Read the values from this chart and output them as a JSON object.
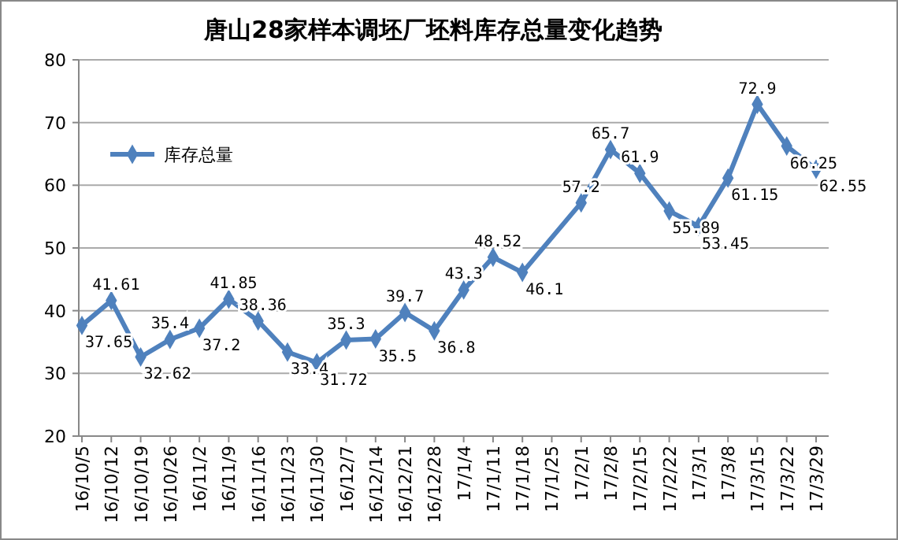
{
  "chart_data": {
    "type": "line",
    "title": "唐山28家样本调坯厂坯料库存总量变化趋势",
    "categories": [
      "16/10/5",
      "16/10/12",
      "16/10/19",
      "16/10/26",
      "16/11/2",
      "16/11/9",
      "16/11/16",
      "16/11/23",
      "16/11/30",
      "16/12/7",
      "16/12/14",
      "16/12/21",
      "16/12/28",
      "17/1/4",
      "17/1/11",
      "17/1/18",
      "17/1/25",
      "17/2/1",
      "17/2/8",
      "17/2/15",
      "17/2/22",
      "17/3/1",
      "17/3/8",
      "17/3/15",
      "17/3/22",
      "17/3/29"
    ],
    "series": [
      {
        "name": "库存总量",
        "color": "#4f81bd",
        "values": [
          37.65,
          41.61,
          32.62,
          35.4,
          37.2,
          41.85,
          38.36,
          33.4,
          31.72,
          35.3,
          35.5,
          39.7,
          36.8,
          43.3,
          48.52,
          46.1,
          null,
          57.2,
          65.7,
          61.9,
          55.89,
          53.45,
          61.15,
          72.9,
          66.25,
          62.55
        ]
      }
    ],
    "ylim": [
      20,
      80
    ],
    "yticks": [
      20,
      30,
      40,
      50,
      60,
      70,
      80
    ],
    "grid": "y",
    "legend": "top left",
    "marker": "diamond",
    "line_style": "solid",
    "data_labels": true
  }
}
